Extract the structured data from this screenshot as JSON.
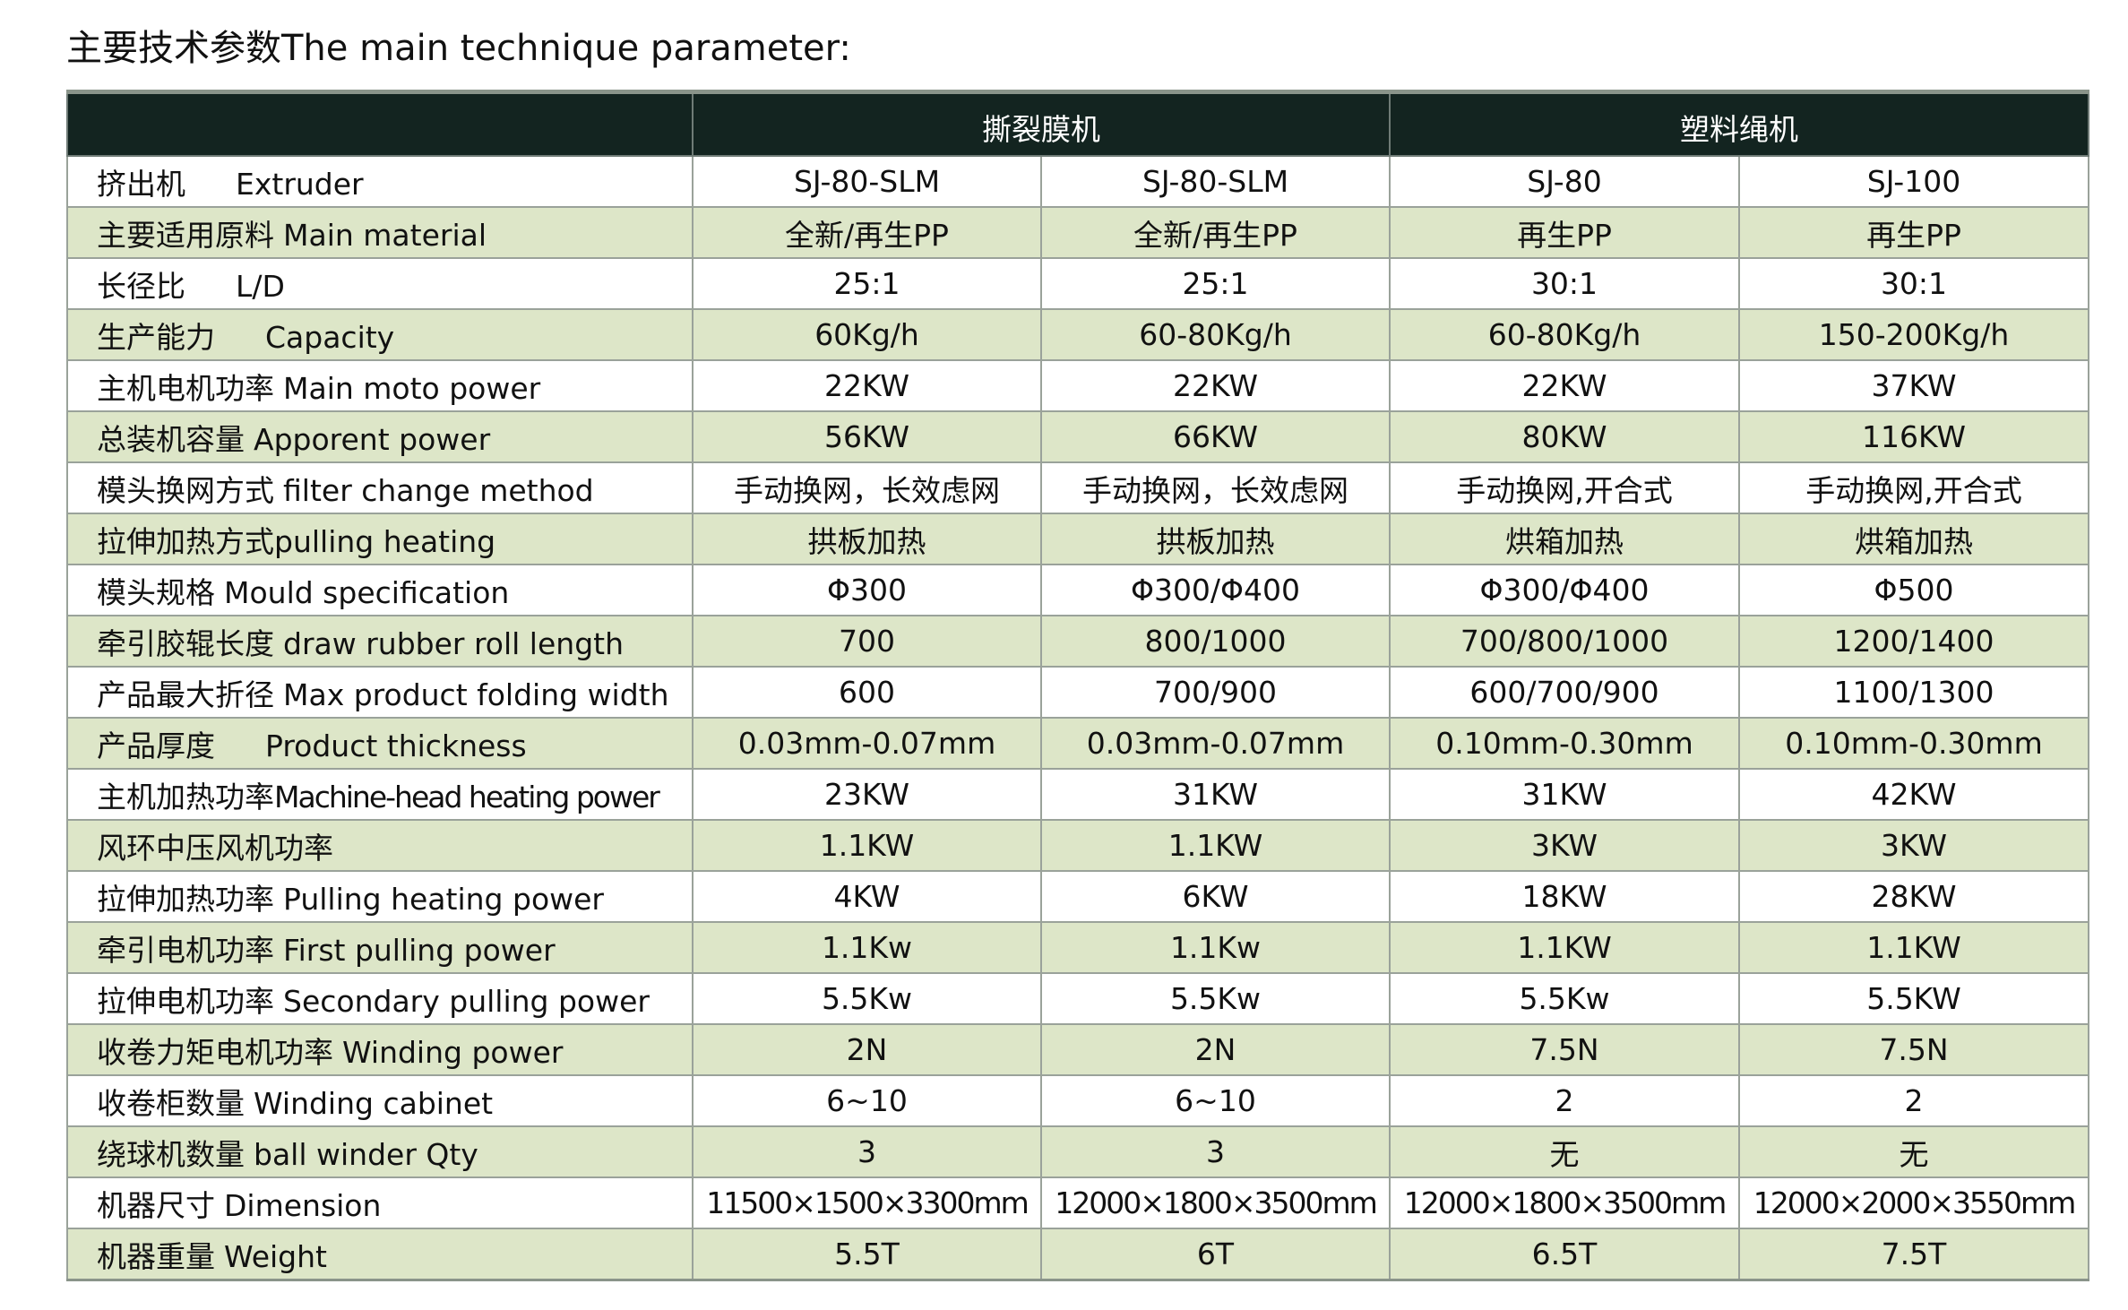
{
  "title": "主要技术参数The main technique parameter:",
  "header": {
    "groups": [
      {
        "label": "撕裂膜机",
        "span": 2
      },
      {
        "label": "塑料绳机",
        "span": 2
      }
    ]
  },
  "rows": [
    {
      "zh": "挤出机",
      "en": "Extruder",
      "gap": true,
      "values": [
        "SJ-80-SLM",
        "SJ-80-SLM",
        "SJ-80",
        "SJ-100"
      ]
    },
    {
      "zh": "主要适用原料",
      "en": "Main material",
      "values": [
        "全新/再生PP",
        "全新/再生PP",
        "再生PP",
        "再生PP"
      ]
    },
    {
      "zh": "长径比",
      "en": "L/D",
      "gap": true,
      "values": [
        "25:1",
        "25:1",
        "30:1",
        "30:1"
      ]
    },
    {
      "zh": "生产能力",
      "en": "Capacity",
      "gap": true,
      "values": [
        "60Kg/h",
        "60-80Kg/h",
        "60-80Kg/h",
        "150-200Kg/h"
      ]
    },
    {
      "zh": "主机电机功率",
      "en": "Main moto power",
      "values": [
        "22KW",
        "22KW",
        "22KW",
        "37KW"
      ]
    },
    {
      "zh": "总装机容量",
      "en": "Apporent power",
      "values": [
        "56KW",
        "66KW",
        "80KW",
        "116KW"
      ]
    },
    {
      "zh": "模头换网方式",
      "en": "filter change method",
      "values": [
        "手动换网，长效虑网",
        "手动换网，长效虑网",
        "手动换网,开合式",
        "手动换网,开合式"
      ]
    },
    {
      "zh": "拉伸加热方式",
      "en": "pulling heating",
      "tight": true,
      "values": [
        "拱板加热",
        "拱板加热",
        "烘箱加热",
        "烘箱加热"
      ]
    },
    {
      "zh": "模头规格",
      "en": "Mould specification",
      "values": [
        "Φ300",
        "Φ300/Φ400",
        "Φ300/Φ400",
        "Φ500"
      ]
    },
    {
      "zh": "牵引胶辊长度",
      "en": "draw rubber roll length",
      "values": [
        "700",
        "800/1000",
        "700/800/1000",
        "1200/1400"
      ]
    },
    {
      "zh": "产品最大折径",
      "en": "Max product folding width",
      "values": [
        "600",
        "700/900",
        "600/700/900",
        "1100/1300"
      ]
    },
    {
      "zh": "产品厚度",
      "en": "Product thickness",
      "gap": true,
      "values": [
        "0.03mm-0.07mm",
        "0.03mm-0.07mm",
        "0.10mm-0.30mm",
        "0.10mm-0.30mm"
      ]
    },
    {
      "zh": "主机加热功率",
      "en": "Machine-head heating power",
      "tight": true,
      "condensed": true,
      "values": [
        "23KW",
        "31KW",
        "31KW",
        "42KW"
      ]
    },
    {
      "zh": "风环中压风机功率",
      "en": "",
      "values": [
        "1.1KW",
        "1.1KW",
        "3KW",
        "3KW"
      ]
    },
    {
      "zh": "拉伸加热功率",
      "en": "Pulling heating power",
      "values": [
        "4KW",
        "6KW",
        "18KW",
        "28KW"
      ]
    },
    {
      "zh": "牵引电机功率",
      "en": "First pulling power",
      "values": [
        "1.1Kw",
        "1.1Kw",
        "1.1KW",
        "1.1KW"
      ]
    },
    {
      "zh": "拉伸电机功率",
      "en": "Secondary pulling power",
      "values": [
        "5.5Kw",
        "5.5Kw",
        "5.5Kw",
        "5.5KW"
      ]
    },
    {
      "zh": "收卷力矩电机功率",
      "en": "Winding power",
      "values": [
        "2N",
        "2N",
        "7.5N",
        "7.5N"
      ]
    },
    {
      "zh": "收卷柜数量",
      "en": "Winding cabinet",
      "values": [
        "6~10",
        "6~10",
        "2",
        "2"
      ]
    },
    {
      "zh": "绕球机数量",
      "en": "ball winder Qty",
      "values": [
        "3",
        "3",
        "无",
        "无"
      ]
    },
    {
      "zh": "机器尺寸",
      "en": "Dimension",
      "condensedValues": true,
      "values": [
        "11500×1500×3300mm",
        "12000×1800×3500mm",
        "12000×1800×3500mm",
        "12000×2000×3550mm"
      ]
    },
    {
      "zh": "机器重量",
      "en": "Weight",
      "values": [
        "5.5T",
        "6T",
        "6.5T",
        "7.5T"
      ]
    }
  ]
}
